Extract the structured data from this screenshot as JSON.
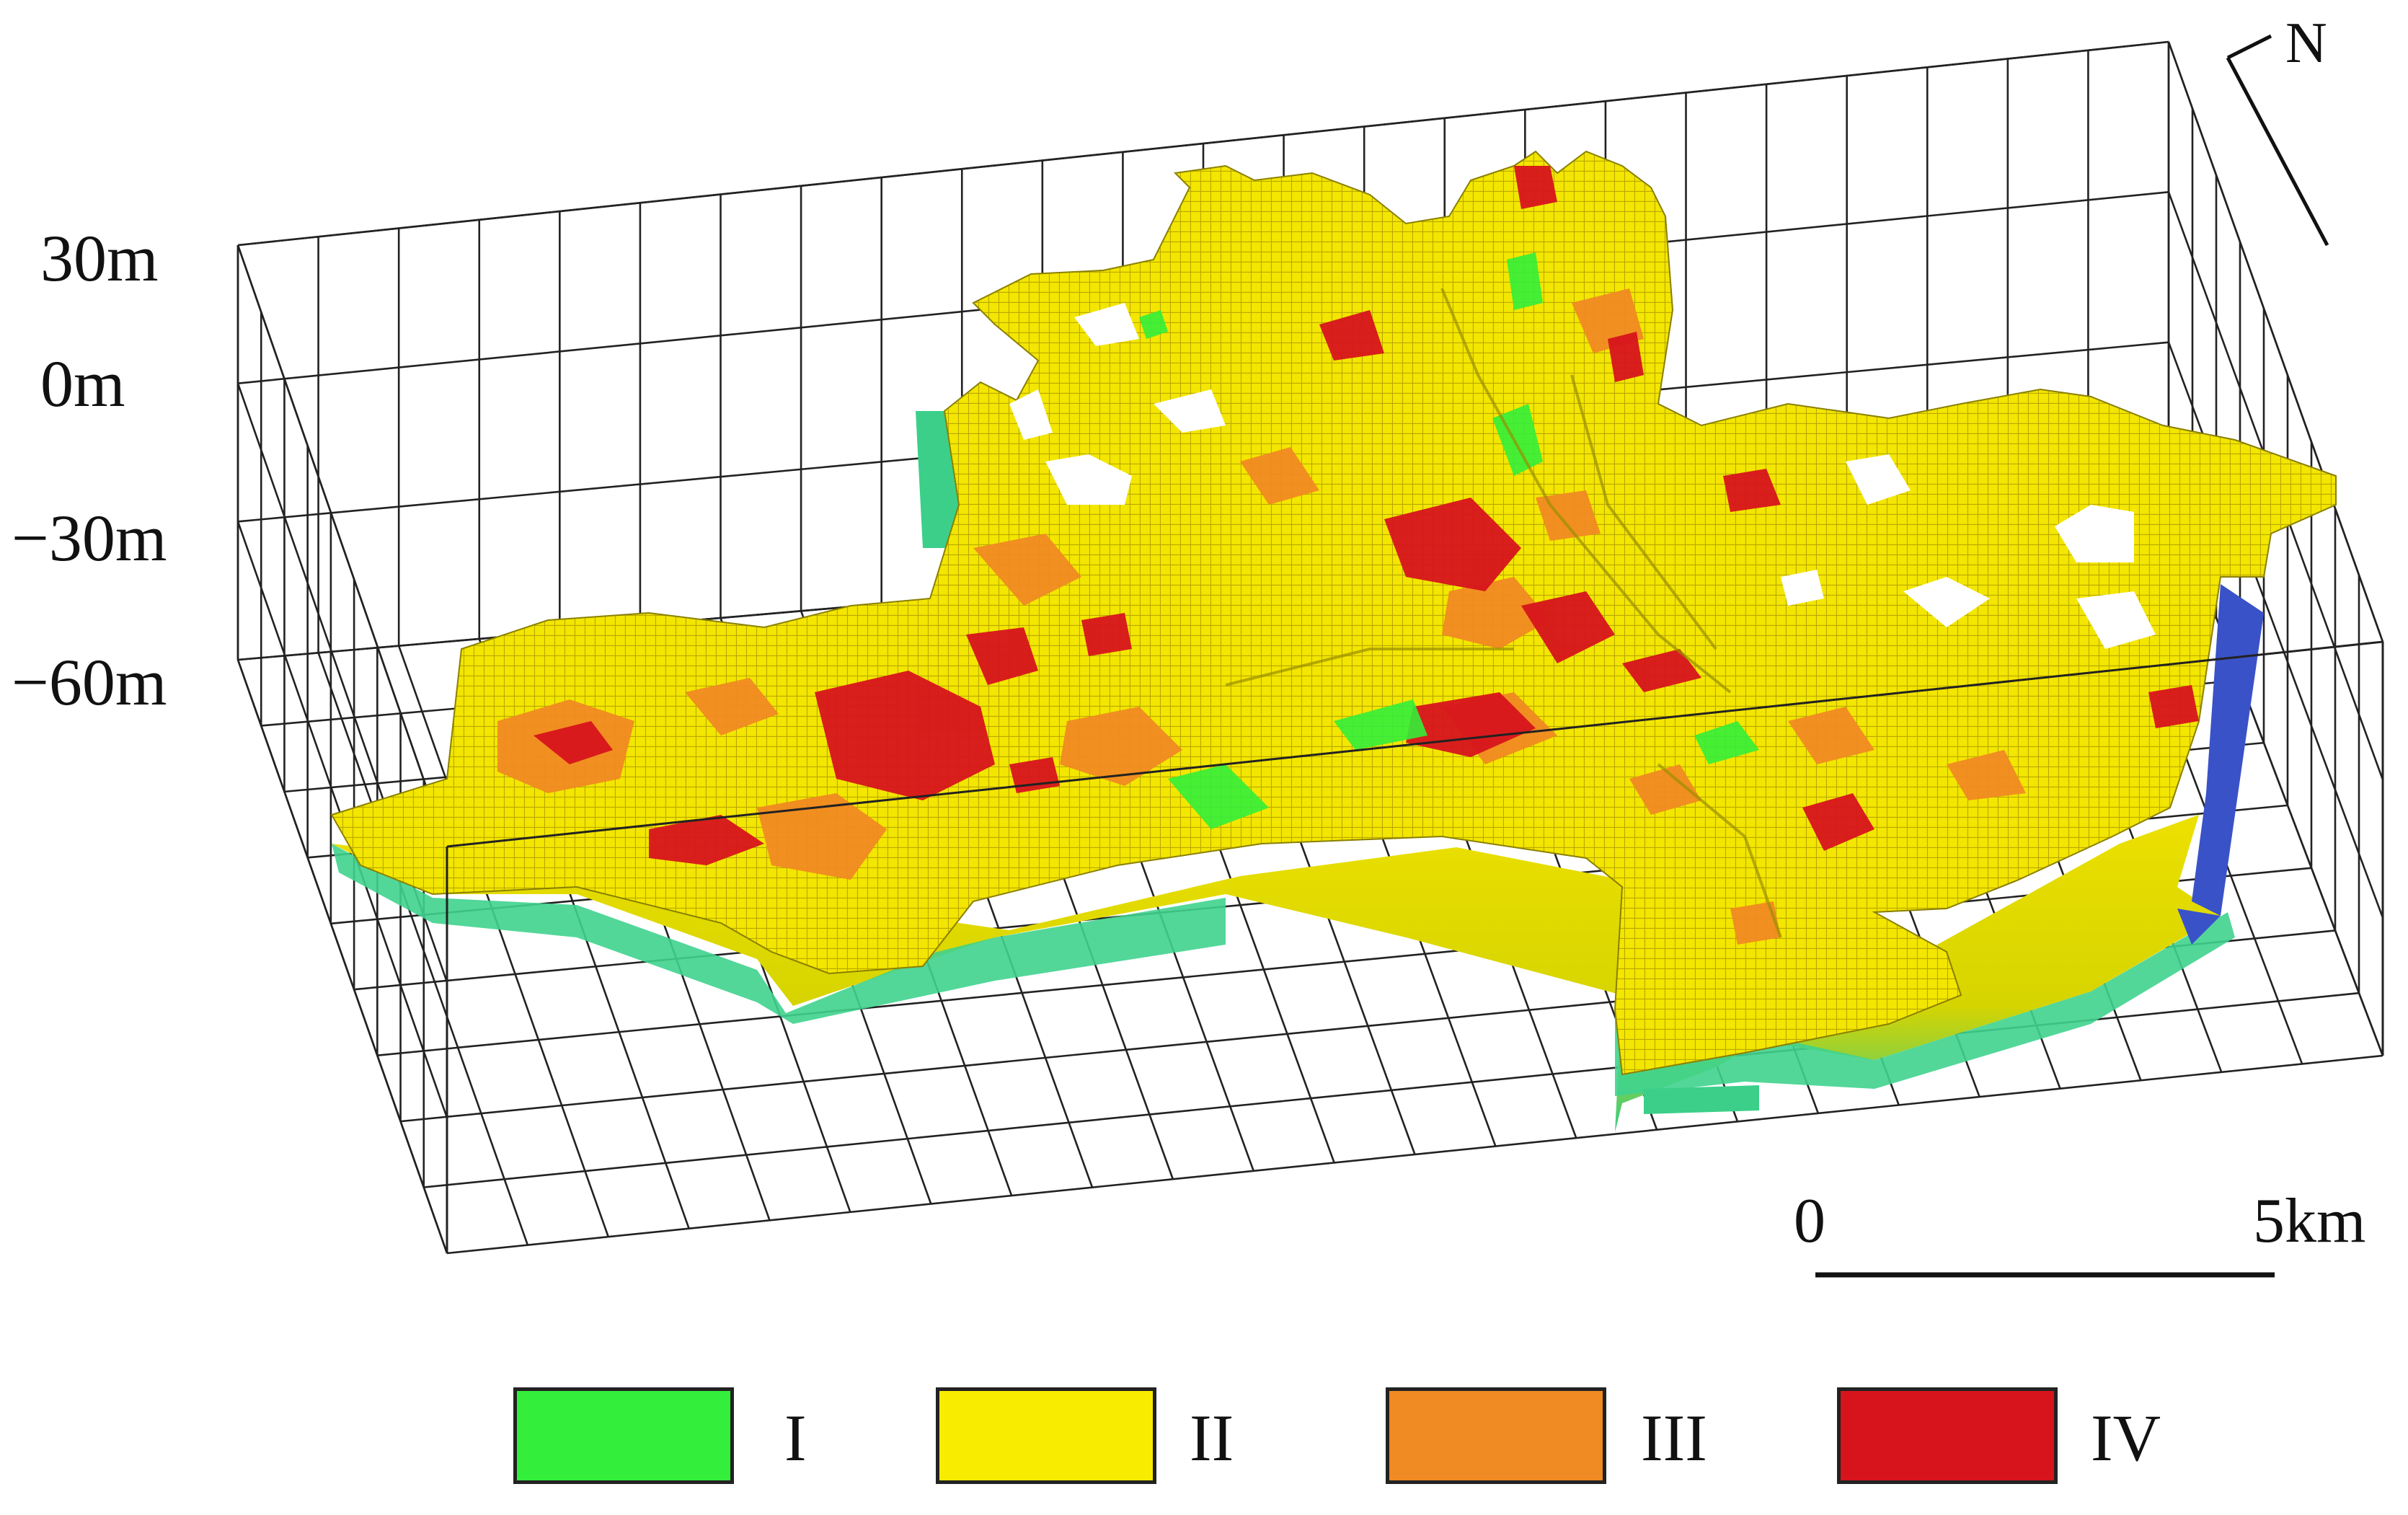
{
  "depth_axis": {
    "labels": [
      "30m",
      "0m",
      "−30m",
      "−60m"
    ]
  },
  "north_arrow": {
    "label": "N"
  },
  "scale_bar": {
    "start_label": "0",
    "end_label": "5km"
  },
  "legend": {
    "items": [
      {
        "label": "I",
        "color": "#33ee3a"
      },
      {
        "label": "II",
        "color": "#f8ec00"
      },
      {
        "label": "III",
        "color": "#f08a22"
      },
      {
        "label": "IV",
        "color": "#d7141c"
      }
    ]
  },
  "colors": {
    "grid": "#222222",
    "blue_edge": "#3a52c8",
    "teal_side": "#3ccf8c"
  }
}
